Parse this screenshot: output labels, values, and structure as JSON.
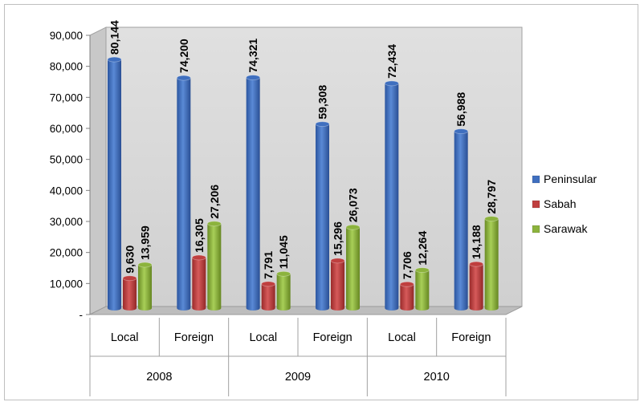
{
  "chart_data": {
    "type": "bar",
    "title": "",
    "xlabel": "",
    "ylabel": "",
    "ylim": [
      0,
      90000
    ],
    "yticks": [
      0,
      10000,
      20000,
      30000,
      40000,
      50000,
      60000,
      70000,
      80000,
      90000
    ],
    "ytick_labels": [
      "-",
      "10,000",
      "20,000",
      "30,000",
      "40,000",
      "50,000",
      "60,000",
      "70,000",
      "80,000",
      "90,000"
    ],
    "grid": false,
    "legend_position": "right",
    "groups": [
      {
        "label": "2008",
        "categories": [
          "Local",
          "Foreign"
        ]
      },
      {
        "label": "2009",
        "categories": [
          "Local",
          "Foreign"
        ]
      },
      {
        "label": "2010",
        "categories": [
          "Local",
          "Foreign"
        ]
      }
    ],
    "categories": [
      "Local",
      "Foreign",
      "Local",
      "Foreign",
      "Local",
      "Foreign"
    ],
    "series": [
      {
        "name": "Peninsular",
        "color": "#3f6fbf",
        "values": [
          80144,
          74200,
          74321,
          59308,
          72434,
          56988
        ],
        "labels": [
          "80,144",
          "74,200",
          "74,321",
          "59,308",
          "72,434",
          "56,988"
        ]
      },
      {
        "name": "Sabah",
        "color": "#bf3f3f",
        "values": [
          9630,
          16305,
          7791,
          15296,
          7706,
          14188
        ],
        "labels": [
          "9,630",
          "16,305",
          "7,791",
          "15,296",
          "7,706",
          "14,188"
        ]
      },
      {
        "name": "Sarawak",
        "color": "#8cb33d",
        "values": [
          13959,
          27206,
          11045,
          26073,
          12264,
          28797
        ],
        "labels": [
          "13,959",
          "27,206",
          "11,045",
          "26,073",
          "12,264",
          "28,797"
        ]
      }
    ]
  }
}
